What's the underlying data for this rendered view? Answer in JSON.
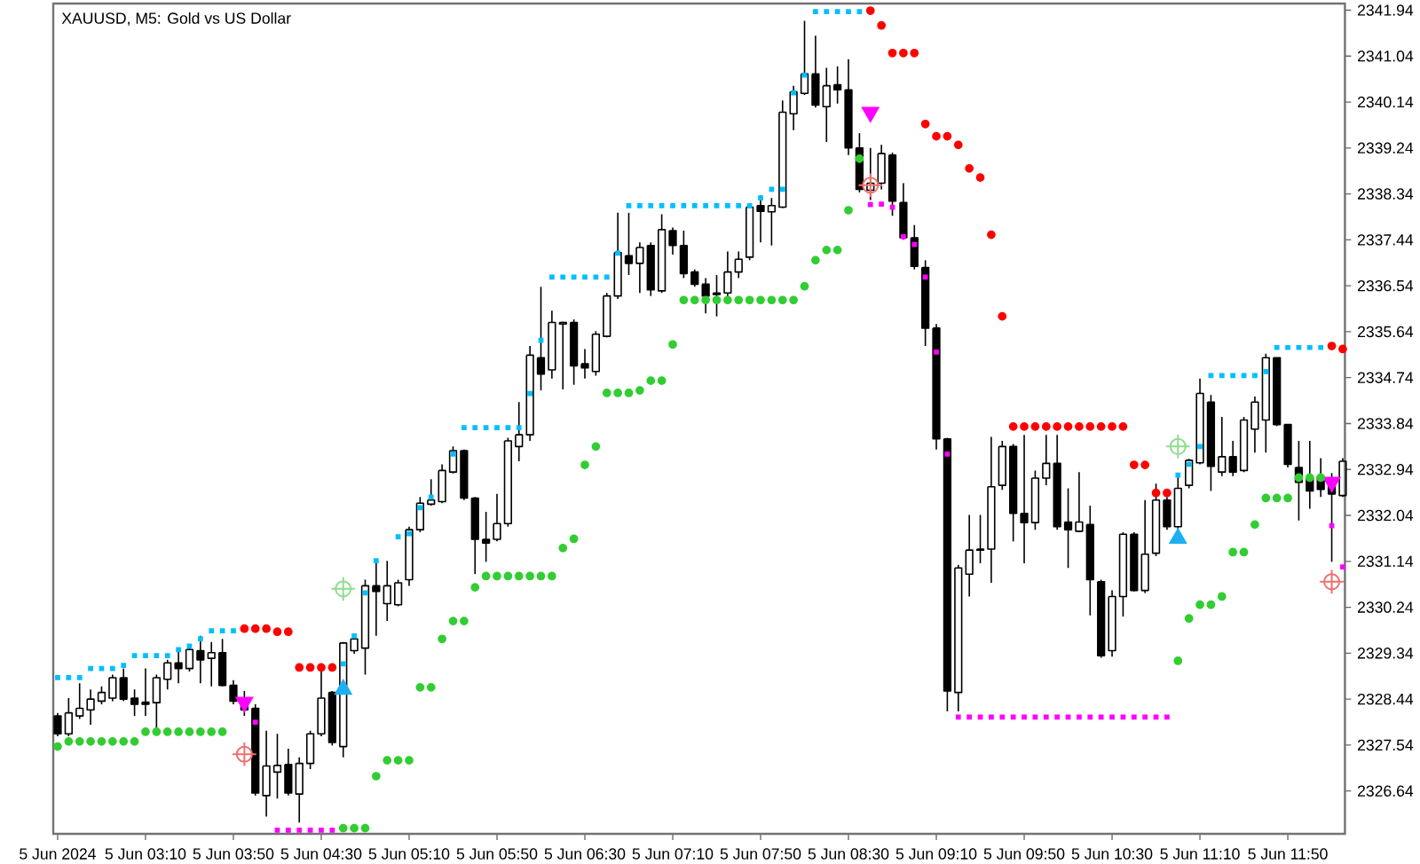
{
  "chart_data": {
    "type": "candlestick",
    "title": "XAUUSD, M5:  Gold vs US Dollar",
    "color": "#000000",
    "xlim": [
      "2024-06-05T02:28",
      "2024-06-05T12:16"
    ],
    "ylim": [
      2325.8,
      2342.07
    ],
    "xticks": [
      {
        "value": "2024-06-05T02:30",
        "label": "5 Jun 2024"
      },
      {
        "value": "2024-06-05T03:10",
        "label": "5 Jun 03:10"
      },
      {
        "value": "2024-06-05T03:50",
        "label": "5 Jun 03:50"
      },
      {
        "value": "2024-06-05T04:30",
        "label": "5 Jun 04:30"
      },
      {
        "value": "2024-06-05T05:10",
        "label": "5 Jun 05:10"
      },
      {
        "value": "2024-06-05T05:50",
        "label": "5 Jun 05:50"
      },
      {
        "value": "2024-06-05T06:30",
        "label": "5 Jun 06:30"
      },
      {
        "value": "2024-06-05T07:10",
        "label": "5 Jun 07:10"
      },
      {
        "value": "2024-06-05T07:50",
        "label": "5 Jun 07:50"
      },
      {
        "value": "2024-06-05T08:30",
        "label": "5 Jun 08:30"
      },
      {
        "value": "2024-06-05T09:10",
        "label": "5 Jun 09:10"
      },
      {
        "value": "2024-06-05T09:50",
        "label": "5 Jun 09:50"
      },
      {
        "value": "2024-06-05T10:30",
        "label": "5 Jun 10:30"
      },
      {
        "value": "2024-06-05T11:10",
        "label": "5 Jun 11:10"
      },
      {
        "value": "2024-06-05T11:50",
        "label": "5 Jun 11:50"
      }
    ],
    "yticks": [
      2326.64,
      2327.54,
      2328.44,
      2329.34,
      2330.24,
      2331.14,
      2332.04,
      2332.94,
      2333.84,
      2334.74,
      2335.64,
      2336.54,
      2337.44,
      2338.34,
      2339.24,
      2340.14,
      2341.04,
      2341.94
    ],
    "x": [
      "2024-06-05T02:30",
      "2024-06-05T02:35",
      "2024-06-05T02:40",
      "2024-06-05T02:45",
      "2024-06-05T02:50",
      "2024-06-05T02:55",
      "2024-06-05T03:00",
      "2024-06-05T03:05",
      "2024-06-05T03:10",
      "2024-06-05T03:15",
      "2024-06-05T03:20",
      "2024-06-05T03:25",
      "2024-06-05T03:30",
      "2024-06-05T03:35",
      "2024-06-05T03:40",
      "2024-06-05T03:45",
      "2024-06-05T03:50",
      "2024-06-05T03:55",
      "2024-06-05T04:00",
      "2024-06-05T04:05",
      "2024-06-05T04:10",
      "2024-06-05T04:15",
      "2024-06-05T04:20",
      "2024-06-05T04:25",
      "2024-06-05T04:30",
      "2024-06-05T04:35",
      "2024-06-05T04:40",
      "2024-06-05T04:45",
      "2024-06-05T04:50",
      "2024-06-05T04:55",
      "2024-06-05T05:00",
      "2024-06-05T05:05",
      "2024-06-05T05:10",
      "2024-06-05T05:15",
      "2024-06-05T05:20",
      "2024-06-05T05:25",
      "2024-06-05T05:30",
      "2024-06-05T05:35",
      "2024-06-05T05:40",
      "2024-06-05T05:45",
      "2024-06-05T05:50",
      "2024-06-05T05:55",
      "2024-06-05T06:00",
      "2024-06-05T06:05",
      "2024-06-05T06:10",
      "2024-06-05T06:15",
      "2024-06-05T06:20",
      "2024-06-05T06:25",
      "2024-06-05T06:30",
      "2024-06-05T06:35",
      "2024-06-05T06:40",
      "2024-06-05T06:45",
      "2024-06-05T06:50",
      "2024-06-05T06:55",
      "2024-06-05T07:00",
      "2024-06-05T07:05",
      "2024-06-05T07:10",
      "2024-06-05T07:15",
      "2024-06-05T07:20",
      "2024-06-05T07:25",
      "2024-06-05T07:30",
      "2024-06-05T07:35",
      "2024-06-05T07:40",
      "2024-06-05T07:45",
      "2024-06-05T07:50",
      "2024-06-05T07:55",
      "2024-06-05T08:00",
      "2024-06-05T08:05",
      "2024-06-05T08:10",
      "2024-06-05T08:15",
      "2024-06-05T08:20",
      "2024-06-05T08:25",
      "2024-06-05T08:30",
      "2024-06-05T08:35",
      "2024-06-05T08:40",
      "2024-06-05T08:45",
      "2024-06-05T08:50",
      "2024-06-05T08:55",
      "2024-06-05T09:00",
      "2024-06-05T09:05",
      "2024-06-05T09:10",
      "2024-06-05T09:15",
      "2024-06-05T09:20",
      "2024-06-05T09:25",
      "2024-06-05T09:30",
      "2024-06-05T09:35",
      "2024-06-05T09:40",
      "2024-06-05T09:45",
      "2024-06-05T09:50",
      "2024-06-05T09:55",
      "2024-06-05T10:00",
      "2024-06-05T10:05",
      "2024-06-05T10:10",
      "2024-06-05T10:15",
      "2024-06-05T10:20",
      "2024-06-05T10:25",
      "2024-06-05T10:30",
      "2024-06-05T10:35",
      "2024-06-05T10:40",
      "2024-06-05T10:45",
      "2024-06-05T10:50",
      "2024-06-05T10:55",
      "2024-06-05T11:00",
      "2024-06-05T11:05",
      "2024-06-05T11:10",
      "2024-06-05T11:15",
      "2024-06-05T11:20",
      "2024-06-05T11:25",
      "2024-06-05T11:30",
      "2024-06-05T11:35",
      "2024-06-05T11:40",
      "2024-06-05T11:45",
      "2024-06-05T11:50",
      "2024-06-05T11:55",
      "2024-06-05T12:00",
      "2024-06-05T12:05",
      "2024-06-05T12:10",
      "2024-06-05T12:15"
    ],
    "ohlc": [
      [
        2328.11,
        2328.17,
        2327.71,
        2327.76
      ],
      [
        2327.76,
        2328.46,
        2327.71,
        2328.17
      ],
      [
        2328.11,
        2328.75,
        2328.05,
        2328.26
      ],
      [
        2328.23,
        2328.63,
        2327.94,
        2328.44
      ],
      [
        2328.4,
        2328.69,
        2328.34,
        2328.57
      ],
      [
        2328.46,
        2328.92,
        2328.4,
        2328.86
      ],
      [
        2328.86,
        2329.04,
        2328.4,
        2328.44
      ],
      [
        2328.46,
        2328.63,
        2328.11,
        2328.34
      ],
      [
        2328.38,
        2329.04,
        2328.11,
        2328.34
      ],
      [
        2328.37,
        2328.92,
        2327.82,
        2328.86
      ],
      [
        2328.83,
        2329.21,
        2328.63,
        2329.15
      ],
      [
        2329.15,
        2329.39,
        2328.75,
        2329.04
      ],
      [
        2329.04,
        2329.5,
        2328.98,
        2329.41
      ],
      [
        2329.39,
        2329.68,
        2328.75,
        2329.21
      ],
      [
        2329.24,
        2329.56,
        2328.69,
        2329.35
      ],
      [
        2329.35,
        2329.62,
        2328.69,
        2328.71
      ],
      [
        2328.71,
        2328.81,
        2328.34,
        2328.4
      ],
      [
        2328.4,
        2328.6,
        2328.11,
        2328.23
      ],
      [
        2328.26,
        2328.34,
        2326.55,
        2326.6
      ],
      [
        2326.55,
        2327.82,
        2326.14,
        2327.13
      ],
      [
        2327.01,
        2327.76,
        2326.49,
        2327.14
      ],
      [
        2327.16,
        2327.47,
        2326.55,
        2326.6
      ],
      [
        2326.58,
        2327.3,
        2326.02,
        2327.18
      ],
      [
        2327.18,
        2327.82,
        2327.07,
        2327.76
      ],
      [
        2327.76,
        2328.98,
        2327.71,
        2328.46
      ],
      [
        2328.57,
        2328.6,
        2327.53,
        2327.59
      ],
      [
        2327.51,
        2329.56,
        2327.3,
        2329.54
      ],
      [
        2329.39,
        2329.73,
        2329.33,
        2329.62
      ],
      [
        2329.44,
        2330.78,
        2328.92,
        2330.66
      ],
      [
        2330.66,
        2331.13,
        2329.68,
        2330.55
      ],
      [
        2330.31,
        2331.15,
        2329.97,
        2330.66
      ],
      [
        2330.29,
        2330.78,
        2330.26,
        2330.72
      ],
      [
        2330.78,
        2331.82,
        2330.66,
        2331.76
      ],
      [
        2331.76,
        2332.4,
        2331.71,
        2332.28
      ],
      [
        2332.26,
        2332.75,
        2332.23,
        2332.34
      ],
      [
        2332.31,
        2333.04,
        2332.28,
        2332.92
      ],
      [
        2332.89,
        2333.39,
        2332.86,
        2333.31
      ],
      [
        2333.31,
        2333.33,
        2332.34,
        2332.38
      ],
      [
        2332.38,
        2332.4,
        2330.89,
        2331.57
      ],
      [
        2331.57,
        2332.11,
        2331.13,
        2331.5
      ],
      [
        2331.57,
        2332.46,
        2331.53,
        2331.88
      ],
      [
        2331.88,
        2333.56,
        2331.82,
        2333.5
      ],
      [
        2333.39,
        2334.26,
        2333.1,
        2333.62
      ],
      [
        2333.62,
        2335.36,
        2333.5,
        2335.18
      ],
      [
        2335.13,
        2336.52,
        2334.49,
        2334.81
      ],
      [
        2334.89,
        2336.05,
        2334.72,
        2335.82
      ],
      [
        2335.79,
        2335.84,
        2334.51,
        2335.82
      ],
      [
        2335.82,
        2335.88,
        2334.6,
        2334.97
      ],
      [
        2335.01,
        2335.3,
        2334.72,
        2334.93
      ],
      [
        2334.86,
        2335.65,
        2334.78,
        2335.59
      ],
      [
        2335.55,
        2336.4,
        2335.53,
        2336.34
      ],
      [
        2336.34,
        2337.97,
        2336.28,
        2337.19
      ],
      [
        2337.13,
        2337.97,
        2336.75,
        2336.98
      ],
      [
        2336.98,
        2337.39,
        2336.4,
        2337.29
      ],
      [
        2337.33,
        2337.39,
        2336.34,
        2336.46
      ],
      [
        2336.44,
        2337.94,
        2336.4,
        2337.64
      ],
      [
        2337.62,
        2337.68,
        2337.15,
        2337.33
      ],
      [
        2337.33,
        2337.62,
        2336.69,
        2336.78
      ],
      [
        2336.81,
        2336.86,
        2336.52,
        2336.57
      ],
      [
        2336.57,
        2336.69,
        2336.0,
        2336.34
      ],
      [
        2336.4,
        2336.75,
        2335.94,
        2336.37
      ],
      [
        2336.4,
        2337.21,
        2336.28,
        2336.81
      ],
      [
        2336.81,
        2337.21,
        2336.69,
        2337.06
      ],
      [
        2337.1,
        2338.14,
        2337.04,
        2338.08
      ],
      [
        2338.11,
        2338.31,
        2337.39,
        2338.0
      ],
      [
        2337.99,
        2338.26,
        2337.33,
        2338.11
      ],
      [
        2338.08,
        2340.17,
        2338.06,
        2339.94
      ],
      [
        2339.91,
        2340.46,
        2339.59,
        2340.34
      ],
      [
        2340.31,
        2341.73,
        2340.28,
        2340.69
      ],
      [
        2340.69,
        2341.44,
        2340.03,
        2340.08
      ],
      [
        2340.05,
        2340.81,
        2339.36,
        2340.46
      ],
      [
        2340.48,
        2340.84,
        2340.11,
        2340.38
      ],
      [
        2340.38,
        2340.98,
        2339.1,
        2339.24
      ],
      [
        2339.24,
        2339.53,
        2338.37,
        2338.43
      ],
      [
        2338.41,
        2339.24,
        2338.22,
        2338.55
      ],
      [
        2338.55,
        2339.3,
        2338.43,
        2339.13
      ],
      [
        2339.1,
        2339.15,
        2337.91,
        2338.2
      ],
      [
        2338.17,
        2338.55,
        2337.44,
        2337.48
      ],
      [
        2337.48,
        2337.73,
        2336.86,
        2336.92
      ],
      [
        2336.9,
        2337.04,
        2335.36,
        2335.71
      ],
      [
        2335.71,
        2335.79,
        2333.33,
        2333.54
      ],
      [
        2333.54,
        2333.56,
        2328.2,
        2328.6
      ],
      [
        2328.57,
        2331.07,
        2328.2,
        2331.01
      ],
      [
        2330.89,
        2332.05,
        2330.45,
        2331.36
      ],
      [
        2331.36,
        2332.05,
        2331.1,
        2331.38
      ],
      [
        2331.38,
        2333.58,
        2330.72,
        2332.6
      ],
      [
        2332.63,
        2333.5,
        2332.54,
        2333.39
      ],
      [
        2333.39,
        2333.44,
        2331.53,
        2332.08
      ],
      [
        2332.08,
        2333.62,
        2331.1,
        2331.9
      ],
      [
        2331.9,
        2332.92,
        2331.76,
        2332.77
      ],
      [
        2332.77,
        2333.62,
        2332.63,
        2333.06
      ],
      [
        2333.06,
        2333.62,
        2331.76,
        2331.82
      ],
      [
        2331.91,
        2332.57,
        2331.01,
        2331.76
      ],
      [
        2331.73,
        2332.89,
        2331.71,
        2331.91
      ],
      [
        2331.86,
        2332.23,
        2330.08,
        2330.78
      ],
      [
        2330.74,
        2330.78,
        2329.25,
        2329.29
      ],
      [
        2329.39,
        2330.57,
        2329.27,
        2330.45
      ],
      [
        2330.45,
        2331.71,
        2330.06,
        2331.67
      ],
      [
        2331.67,
        2331.71,
        2330.55,
        2330.57
      ],
      [
        2330.57,
        2332.34,
        2330.52,
        2331.28
      ],
      [
        2331.3,
        2332.66,
        2331.24,
        2332.34
      ],
      [
        2332.34,
        2332.4,
        2331.76,
        2331.82
      ],
      [
        2331.82,
        2332.84,
        2331.76,
        2332.57
      ],
      [
        2332.63,
        2333.15,
        2332.57,
        2333.12
      ],
      [
        2333.07,
        2334.72,
        2333.04,
        2334.43
      ],
      [
        2334.26,
        2334.4,
        2332.52,
        2333.0
      ],
      [
        2332.89,
        2333.97,
        2332.81,
        2333.19
      ],
      [
        2333.19,
        2333.5,
        2332.81,
        2332.89
      ],
      [
        2332.92,
        2333.97,
        2332.89,
        2333.91
      ],
      [
        2333.73,
        2334.37,
        2333.27,
        2334.26
      ],
      [
        2333.91,
        2335.21,
        2333.27,
        2335.13
      ],
      [
        2335.13,
        2335.13,
        2333.79,
        2333.82
      ],
      [
        2333.82,
        2333.82,
        2332.98,
        2333.04
      ],
      [
        2332.98,
        2333.5,
        2331.94,
        2332.69
      ],
      [
        2332.77,
        2333.5,
        2332.17,
        2332.52
      ],
      [
        2332.8,
        2333.16,
        2332.4,
        2332.55
      ],
      [
        2332.63,
        2332.87,
        2331.13,
        2332.46
      ],
      [
        2332.43,
        2333.16,
        2332.4,
        2333.1
      ]
    ],
    "series": [
      {
        "type": "scatter",
        "marker": "square",
        "color": "#00bfff",
        "x": [
          "2024-06-05T02:30",
          "2024-06-05T02:35",
          "2024-06-05T02:40",
          "2024-06-05T02:45",
          "2024-06-05T02:50",
          "2024-06-05T02:55",
          "2024-06-05T03:00",
          "2024-06-05T03:05",
          "2024-06-05T03:10",
          "2024-06-05T03:15",
          "2024-06-05T03:20",
          "2024-06-05T03:25",
          "2024-06-05T03:30",
          "2024-06-05T03:35",
          "2024-06-05T03:40",
          "2024-06-05T03:45",
          "2024-06-05T03:50",
          "2024-06-05T04:40",
          "2024-06-05T04:45",
          "2024-06-05T04:50",
          "2024-06-05T04:55",
          "2024-06-05T05:05",
          "2024-06-05T05:10",
          "2024-06-05T05:15",
          "2024-06-05T05:20",
          "2024-06-05T05:30",
          "2024-06-05T05:35",
          "2024-06-05T05:40",
          "2024-06-05T05:45",
          "2024-06-05T05:50",
          "2024-06-05T05:55",
          "2024-06-05T06:00",
          "2024-06-05T06:05",
          "2024-06-05T06:10",
          "2024-06-05T06:15",
          "2024-06-05T06:20",
          "2024-06-05T06:25",
          "2024-06-05T06:30",
          "2024-06-05T06:35",
          "2024-06-05T06:40",
          "2024-06-05T06:45",
          "2024-06-05T06:50",
          "2024-06-05T06:55",
          "2024-06-05T07:00",
          "2024-06-05T07:05",
          "2024-06-05T07:10",
          "2024-06-05T07:15",
          "2024-06-05T07:20",
          "2024-06-05T07:25",
          "2024-06-05T07:30",
          "2024-06-05T07:35",
          "2024-06-05T07:40",
          "2024-06-05T07:45",
          "2024-06-05T07:50",
          "2024-06-05T07:55",
          "2024-06-05T08:00",
          "2024-06-05T08:05",
          "2024-06-05T08:10",
          "2024-06-05T08:15",
          "2024-06-05T08:20",
          "2024-06-05T08:25",
          "2024-06-05T08:30",
          "2024-06-05T08:35",
          "2024-06-05T11:00",
          "2024-06-05T11:05",
          "2024-06-05T11:10",
          "2024-06-05T11:15",
          "2024-06-05T11:20",
          "2024-06-05T11:25",
          "2024-06-05T11:30",
          "2024-06-05T11:35",
          "2024-06-05T11:40",
          "2024-06-05T11:45",
          "2024-06-05T11:50",
          "2024-06-05T11:55",
          "2024-06-05T12:00",
          "2024-06-05T12:05"
        ],
        "values": [
          2328.86,
          2328.86,
          2328.86,
          2329.04,
          2329.04,
          2329.04,
          2329.1,
          2329.29,
          2329.29,
          2329.29,
          2329.29,
          2329.41,
          2329.48,
          2329.62,
          2329.78,
          2329.78,
          2329.78,
          2329.13,
          2329.68,
          2330.52,
          2331.15,
          2331.62,
          2331.68,
          2332.19,
          2332.4,
          2333.24,
          2333.76,
          2333.76,
          2333.76,
          2333.76,
          2333.76,
          2333.76,
          2334.43,
          2335.47,
          2336.71,
          2336.71,
          2336.71,
          2336.71,
          2336.71,
          2336.71,
          2337.18,
          2338.11,
          2338.11,
          2338.11,
          2338.11,
          2338.11,
          2338.11,
          2338.11,
          2338.11,
          2338.11,
          2338.11,
          2338.11,
          2338.11,
          2338.26,
          2338.43,
          2338.43,
          2340.32,
          2340.67,
          2341.91,
          2341.91,
          2341.91,
          2341.91,
          2341.91,
          2332.83,
          2333.04,
          2333.39,
          2334.78,
          2334.78,
          2334.78,
          2334.78,
          2334.78,
          2334.86,
          2335.33,
          2335.33,
          2335.33,
          2335.33,
          2335.33
        ]
      },
      {
        "type": "scatter",
        "marker": "circle",
        "color": "#ff0000",
        "x": [
          "2024-06-05T03:55",
          "2024-06-05T04:00",
          "2024-06-05T04:05",
          "2024-06-05T04:10",
          "2024-06-05T04:15",
          "2024-06-05T04:20",
          "2024-06-05T04:25",
          "2024-06-05T04:30",
          "2024-06-05T04:35",
          "2024-06-05T08:40",
          "2024-06-05T08:45",
          "2024-06-05T08:50",
          "2024-06-05T08:55",
          "2024-06-05T09:00",
          "2024-06-05T09:05",
          "2024-06-05T09:10",
          "2024-06-05T09:15",
          "2024-06-05T09:20",
          "2024-06-05T09:25",
          "2024-06-05T09:30",
          "2024-06-05T09:35",
          "2024-06-05T09:40",
          "2024-06-05T09:45",
          "2024-06-05T09:50",
          "2024-06-05T09:55",
          "2024-06-05T10:00",
          "2024-06-05T10:05",
          "2024-06-05T10:10",
          "2024-06-05T10:15",
          "2024-06-05T10:20",
          "2024-06-05T10:25",
          "2024-06-05T10:30",
          "2024-06-05T10:35",
          "2024-06-05T10:40",
          "2024-06-05T10:45",
          "2024-06-05T10:50",
          "2024-06-05T10:55",
          "2024-06-05T12:10",
          "2024-06-05T12:15"
        ],
        "values": [
          2329.82,
          2329.82,
          2329.82,
          2329.76,
          2329.76,
          2329.06,
          2329.06,
          2329.06,
          2329.06,
          2341.93,
          2341.64,
          2341.1,
          2341.1,
          2341.1,
          2339.71,
          2339.47,
          2339.47,
          2339.3,
          2338.84,
          2338.66,
          2337.54,
          2335.94,
          2333.78,
          2333.78,
          2333.78,
          2333.78,
          2333.78,
          2333.78,
          2333.78,
          2333.78,
          2333.78,
          2333.78,
          2333.78,
          2333.03,
          2333.03,
          2332.48,
          2332.48,
          2335.36,
          2335.3
        ]
      },
      {
        "type": "scatter",
        "marker": "circle",
        "color": "#32cd32",
        "x": [
          "2024-06-05T02:30",
          "2024-06-05T02:35",
          "2024-06-05T02:40",
          "2024-06-05T02:45",
          "2024-06-05T02:50",
          "2024-06-05T02:55",
          "2024-06-05T03:00",
          "2024-06-05T03:05",
          "2024-06-05T03:10",
          "2024-06-05T03:15",
          "2024-06-05T03:20",
          "2024-06-05T03:25",
          "2024-06-05T03:30",
          "2024-06-05T03:35",
          "2024-06-05T03:40",
          "2024-06-05T03:45",
          "2024-06-05T04:40",
          "2024-06-05T04:45",
          "2024-06-05T04:50",
          "2024-06-05T04:55",
          "2024-06-05T05:00",
          "2024-06-05T05:05",
          "2024-06-05T05:10",
          "2024-06-05T05:15",
          "2024-06-05T05:20",
          "2024-06-05T05:25",
          "2024-06-05T05:30",
          "2024-06-05T05:35",
          "2024-06-05T05:40",
          "2024-06-05T05:45",
          "2024-06-05T05:50",
          "2024-06-05T05:55",
          "2024-06-05T06:00",
          "2024-06-05T06:05",
          "2024-06-05T06:10",
          "2024-06-05T06:15",
          "2024-06-05T06:20",
          "2024-06-05T06:25",
          "2024-06-05T06:30",
          "2024-06-05T06:35",
          "2024-06-05T06:40",
          "2024-06-05T06:45",
          "2024-06-05T06:50",
          "2024-06-05T06:55",
          "2024-06-05T07:00",
          "2024-06-05T07:05",
          "2024-06-05T07:10",
          "2024-06-05T07:15",
          "2024-06-05T07:20",
          "2024-06-05T07:25",
          "2024-06-05T07:30",
          "2024-06-05T07:35",
          "2024-06-05T07:40",
          "2024-06-05T07:45",
          "2024-06-05T07:50",
          "2024-06-05T07:55",
          "2024-06-05T08:00",
          "2024-06-05T08:05",
          "2024-06-05T08:10",
          "2024-06-05T08:15",
          "2024-06-05T08:20",
          "2024-06-05T08:25",
          "2024-06-05T08:30",
          "2024-06-05T08:35",
          "2024-06-05T11:00",
          "2024-06-05T11:05",
          "2024-06-05T11:10",
          "2024-06-05T11:15",
          "2024-06-05T11:20",
          "2024-06-05T11:25",
          "2024-06-05T11:30",
          "2024-06-05T11:35",
          "2024-06-05T11:40",
          "2024-06-05T11:45",
          "2024-06-05T11:50",
          "2024-06-05T11:55",
          "2024-06-05T12:00",
          "2024-06-05T12:05"
        ],
        "values": [
          2327.51,
          2327.61,
          2327.61,
          2327.61,
          2327.61,
          2327.61,
          2327.61,
          2327.61,
          2327.8,
          2327.8,
          2327.8,
          2327.8,
          2327.8,
          2327.8,
          2327.8,
          2327.8,
          2325.91,
          2325.91,
          2325.91,
          2326.93,
          2327.24,
          2327.24,
          2327.24,
          2328.67,
          2328.67,
          2329.62,
          2329.97,
          2329.97,
          2330.63,
          2330.85,
          2330.85,
          2330.85,
          2330.85,
          2330.85,
          2330.85,
          2330.85,
          2331.4,
          2331.58,
          2333.03,
          2333.39,
          2334.44,
          2334.44,
          2334.44,
          2334.49,
          2334.68,
          2334.68,
          2335.39,
          2336.26,
          2336.26,
          2336.26,
          2336.26,
          2336.26,
          2336.26,
          2336.26,
          2336.26,
          2336.26,
          2336.26,
          2336.26,
          2336.53,
          2337.04,
          2337.24,
          2337.24,
          2338.02,
          2339.03,
          2329.19,
          2330.02,
          2330.29,
          2330.29,
          2330.45,
          2331.32,
          2331.32,
          2331.86,
          2332.38,
          2332.38,
          2332.38,
          2332.78,
          2332.78,
          2332.78
        ]
      },
      {
        "type": "scatter",
        "marker": "square",
        "color": "#ff00ff",
        "x": [
          "2024-06-05T04:00",
          "2024-06-05T04:10",
          "2024-06-05T04:15",
          "2024-06-05T04:20",
          "2024-06-05T04:25",
          "2024-06-05T04:30",
          "2024-06-05T04:35",
          "2024-06-05T08:40",
          "2024-06-05T08:45",
          "2024-06-05T08:50",
          "2024-06-05T08:55",
          "2024-06-05T09:00",
          "2024-06-05T09:05",
          "2024-06-05T09:10",
          "2024-06-05T09:15",
          "2024-06-05T09:20",
          "2024-06-05T09:25",
          "2024-06-05T09:30",
          "2024-06-05T09:35",
          "2024-06-05T09:40",
          "2024-06-05T09:45",
          "2024-06-05T09:50",
          "2024-06-05T09:55",
          "2024-06-05T10:00",
          "2024-06-05T10:05",
          "2024-06-05T10:10",
          "2024-06-05T10:15",
          "2024-06-05T10:20",
          "2024-06-05T10:25",
          "2024-06-05T10:30",
          "2024-06-05T10:35",
          "2024-06-05T10:40",
          "2024-06-05T10:45",
          "2024-06-05T10:50",
          "2024-06-05T10:55",
          "2024-06-05T12:10",
          "2024-06-05T12:15"
        ],
        "values": [
          2327.99,
          2325.87,
          2325.87,
          2325.87,
          2325.87,
          2325.87,
          2325.87,
          2338.13,
          2338.14,
          2338.08,
          2337.5,
          2337.35,
          2336.71,
          2335.24,
          2333.24,
          2328.09,
          2328.09,
          2328.09,
          2328.09,
          2328.09,
          2328.09,
          2328.09,
          2328.09,
          2328.09,
          2328.09,
          2328.09,
          2328.09,
          2328.09,
          2328.09,
          2328.09,
          2328.09,
          2328.09,
          2328.09,
          2328.09,
          2328.09,
          2331.84,
          2331.03
        ]
      },
      {
        "type": "scatter",
        "marker": "crosshair",
        "color": "#f07070",
        "x": [
          "2024-06-05T03:55",
          "2024-06-05T08:40",
          "2024-06-05T12:10"
        ],
        "values": [
          2327.36,
          2338.51,
          2330.74
        ]
      },
      {
        "type": "scatter",
        "marker": "crosshair",
        "color": "#8fdc8f",
        "x": [
          "2024-06-05T04:40",
          "2024-06-05T11:00"
        ],
        "values": [
          2330.6,
          2333.39
        ]
      },
      {
        "type": "scatter",
        "marker": "triangle",
        "color": "#ff00ff",
        "x": [
          "2024-06-05T03:55",
          "2024-06-05T08:40",
          "2024-06-05T12:10"
        ],
        "values": [
          2328.38,
          2339.94,
          2332.69
        ]
      },
      {
        "type": "scatter",
        "marker": "triangle",
        "color": "#1eaff0",
        "x": [
          "2024-06-05T04:40",
          "2024-06-05T11:00"
        ],
        "values": [
          2328.63,
          2331.59
        ]
      }
    ]
  }
}
